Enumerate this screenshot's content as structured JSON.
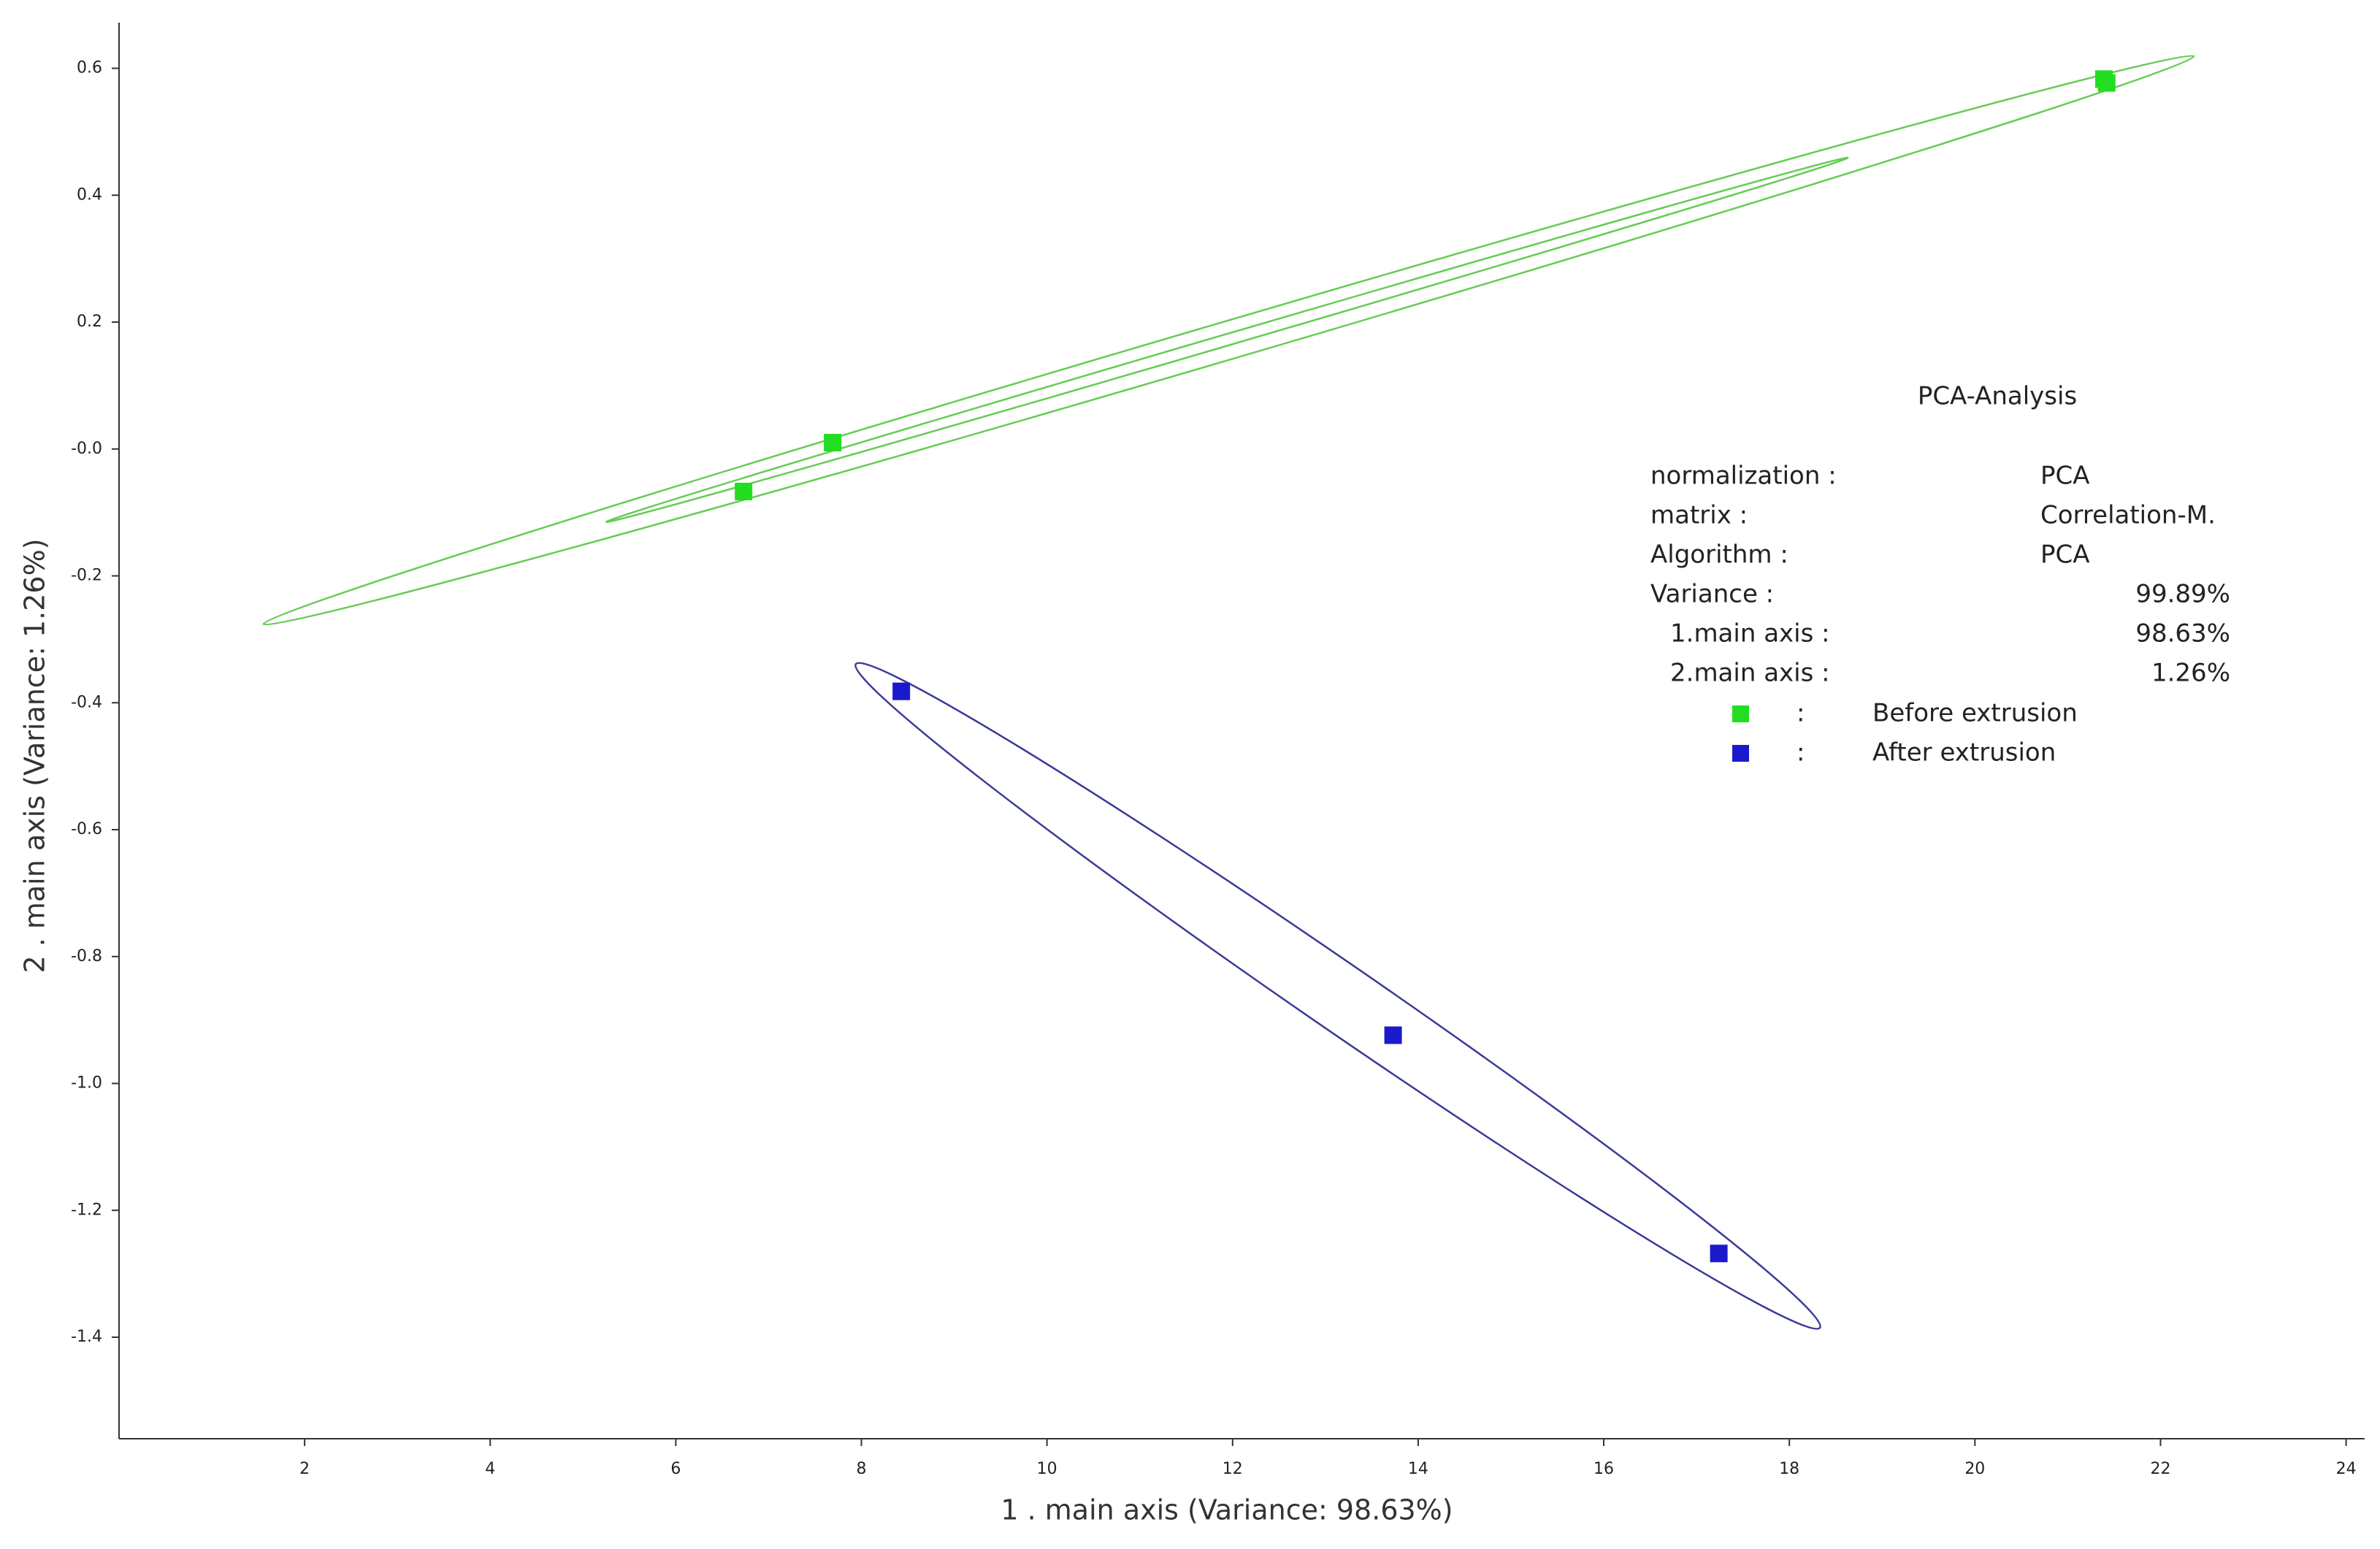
{
  "chart_data": {
    "type": "scatter",
    "x_label": "1 . main axis (Variance: 98.63%)",
    "y_label": "2 . main axis (Variance: 1.26%)",
    "xlim": [
      0,
      24.2
    ],
    "ylim": [
      -1.56,
      0.672
    ],
    "xticks": [
      2,
      4,
      6,
      8,
      10,
      12,
      14,
      16,
      18,
      20,
      22,
      24
    ],
    "yticks": [
      0.6,
      0.4,
      0.2,
      {
        "value": 0,
        "label": "-0.0"
      },
      -0.2,
      -0.4,
      -0.6,
      -0.8,
      {
        "value": -1,
        "label": "-1.0"
      },
      -1.2,
      -1.4
    ],
    "grid": false,
    "series": [
      {
        "name": "Before extrusion",
        "color": "#22dd22",
        "ellipse_color": "#66cc55",
        "x": [
          21.39,
          21.42,
          7.69,
          6.73
        ],
        "values": [
          0.583,
          0.577,
          0.01,
          -0.067
        ],
        "ellipses": [
          {
            "from": [
              1.555,
              -0.276
            ],
            "to": [
              22.36,
              0.619
            ],
            "half_width": 0.03
          },
          {
            "from": [
              5.25,
              -0.115
            ],
            "to": [
              18.63,
              0.459
            ],
            "half_width": 0.009
          }
        ]
      },
      {
        "name": "After extrusion",
        "color": "#1a1acc",
        "ellipse_color": "#3a3a99",
        "x": [
          8.43,
          13.73,
          17.24
        ],
        "values": [
          -0.382,
          -0.924,
          -1.268
        ],
        "ellipses": [
          {
            "from": [
              7.94,
              -0.339
            ],
            "to": [
              18.33,
              -1.385
            ],
            "half_width": 0.053
          }
        ]
      }
    ],
    "info": {
      "title": "PCA-Analysis",
      "rows": [
        [
          "normalization  :",
          "PCA"
        ],
        [
          "matrix  :",
          "Correlation-M."
        ],
        [
          "Algorithm  :",
          "PCA"
        ],
        [
          "Variance  :",
          "99.89%"
        ],
        [
          "1.main axis  :",
          "98.63%"
        ],
        [
          "2.main axis  :",
          "1.26%"
        ]
      ],
      "legend_separator": ":"
    }
  }
}
